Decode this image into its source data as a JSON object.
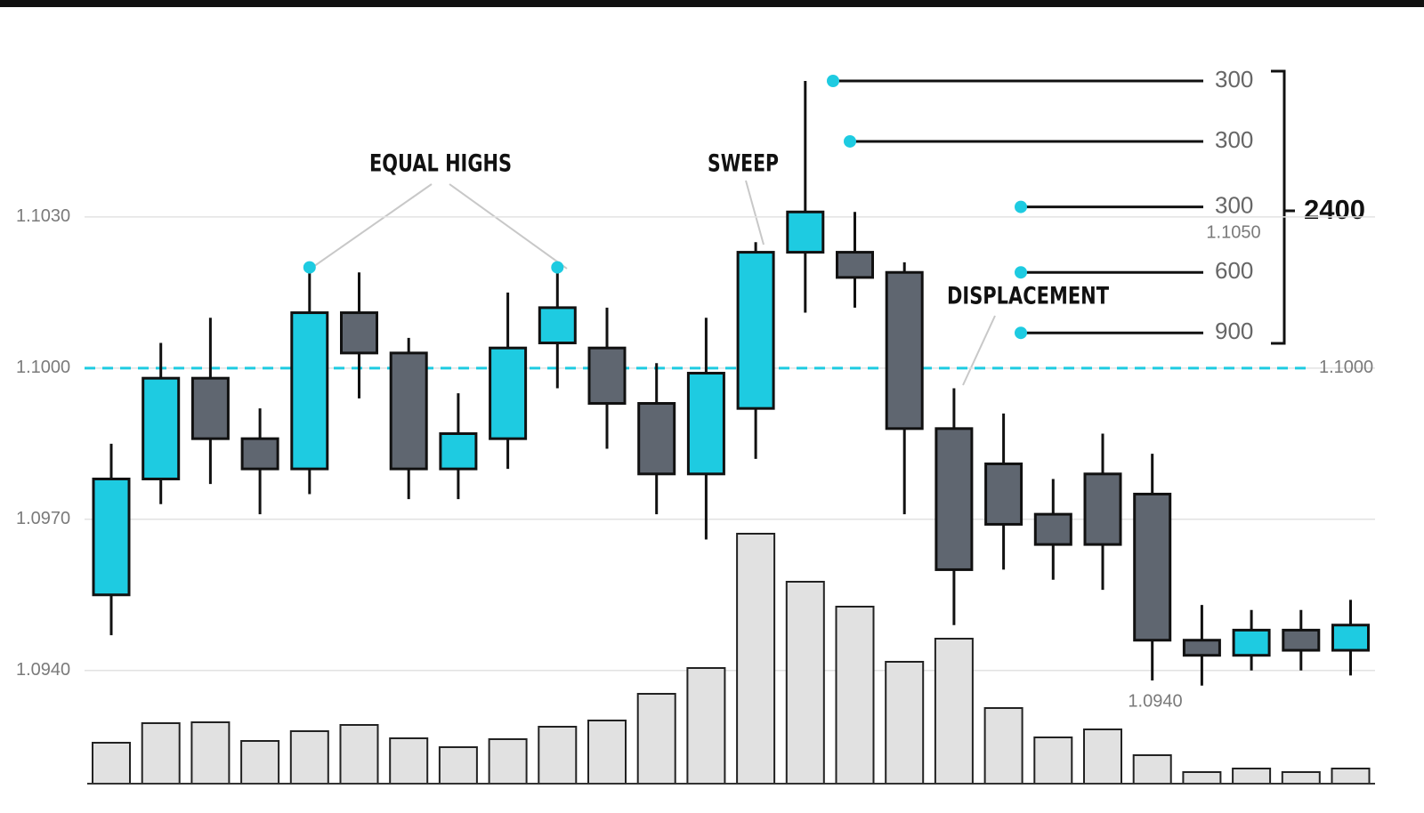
{
  "chart_data": {
    "type": "candlestick",
    "open": [
      1.0955,
      1.0978,
      1.0998,
      1.0986,
      1.098,
      1.1011,
      1.1003,
      1.098,
      1.0986,
      1.1005,
      1.1004,
      1.0993,
      1.0979,
      1.0992,
      1.1023,
      1.1023,
      1.1019,
      1.0988,
      1.0981,
      1.0971,
      1.0979,
      1.0975,
      1.0946,
      1.0943,
      1.0948,
      1.0944
    ],
    "high": [
      1.0985,
      1.1005,
      1.101,
      1.0992,
      1.102,
      1.1019,
      1.1006,
      1.0995,
      1.1015,
      1.102,
      1.1012,
      1.1001,
      1.101,
      1.1025,
      1.1057,
      1.1031,
      1.1021,
      1.0996,
      1.0991,
      1.0978,
      1.0987,
      1.0983,
      1.0953,
      1.0952,
      1.0952,
      1.0954
    ],
    "low": [
      1.0947,
      1.0973,
      1.0977,
      1.0971,
      1.0975,
      1.0994,
      1.0974,
      1.0974,
      1.098,
      1.0996,
      1.0984,
      1.0971,
      1.0966,
      1.0982,
      1.1011,
      1.1012,
      1.0971,
      1.0949,
      1.096,
      1.0958,
      1.0956,
      1.0938,
      1.0937,
      1.094,
      1.094,
      1.0939
    ],
    "close": [
      1.0978,
      1.0998,
      1.0986,
      1.098,
      1.1011,
      1.1003,
      1.098,
      1.0987,
      1.1004,
      1.1012,
      1.0993,
      1.0979,
      1.0999,
      1.1023,
      1.1031,
      1.1018,
      1.0988,
      1.096,
      1.0969,
      1.0965,
      1.0965,
      1.0946,
      1.0943,
      1.0948,
      1.0944,
      1.0949
    ],
    "volume": [
      46,
      68,
      69,
      48,
      59,
      66,
      51,
      41,
      50,
      64,
      71,
      101,
      130,
      281,
      227,
      199,
      137,
      163,
      85,
      52,
      61,
      32,
      13,
      17,
      13,
      17
    ],
    "up_color": "#1ecbe1",
    "down_color": "#5f6670",
    "volume_color": "#e1e1e1",
    "ylim": [
      1.092,
      1.106
    ],
    "yticks": [
      {
        "value": 1.094,
        "label": "1.0940"
      },
      {
        "value": 1.097,
        "label": "1.0970"
      },
      {
        "value": 1.1,
        "label": "1.1000"
      },
      {
        "value": 1.103,
        "label": "1.1030"
      }
    ],
    "vlim": [
      0,
      300
    ],
    "grid": true,
    "reference_line": {
      "value": 1.1,
      "label": "1.1000",
      "color": "#1ecbe1"
    },
    "annotations": {
      "equal_highs": "EQUAL HIGHS",
      "sweep": "SWEEP",
      "displacement": "DISPLACEMENT",
      "level_note": "1.1050",
      "low_note": "1.0940"
    },
    "levels": [
      {
        "price": 1.1057,
        "size": 300
      },
      {
        "price": 1.1045,
        "size": 300
      },
      {
        "price": 1.1032,
        "size": 300
      },
      {
        "price": 1.1019,
        "size": 600
      },
      {
        "price": 1.1007,
        "size": 900
      }
    ],
    "levels_total": 2400
  }
}
